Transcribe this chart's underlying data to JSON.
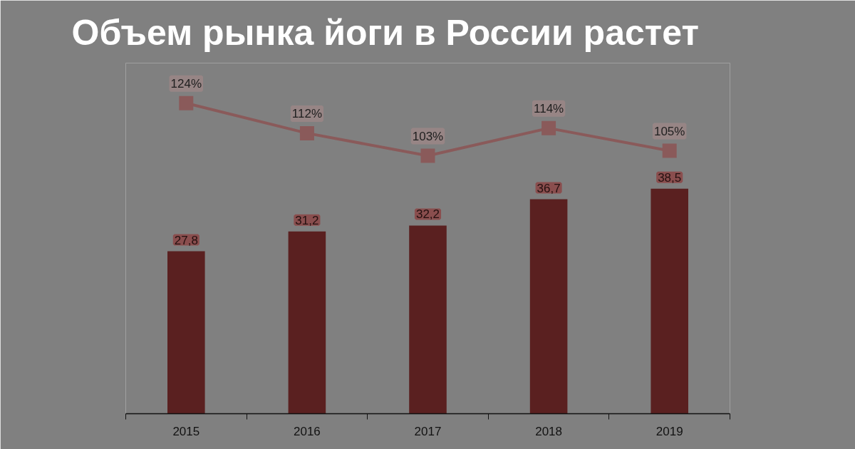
{
  "chart_data": {
    "type": "bar",
    "title": "Объем рынка йоги в России растет",
    "categories": [
      "2015",
      "2016",
      "2017",
      "2018",
      "2019"
    ],
    "series": [
      {
        "color": "#5a2020",
        "values": [
          27.8,
          31.2,
          32.2,
          36.7,
          38.5
        ],
        "value_labels": [
          "27,8",
          "31,2",
          "32,2",
          "36,7",
          "38,5"
        ]
      },
      {
        "type": "line",
        "axis": "y2",
        "color": "#8a5a5a",
        "values": [
          124,
          112,
          103,
          114,
          105
        ],
        "value_labels": [
          "124%",
          "112%",
          "103%",
          "114%",
          "105%"
        ]
      }
    ],
    "ylim": [
      0,
      60
    ],
    "y2lim": [
      0,
      140
    ],
    "tick_labels": "x",
    "grid": false,
    "marker": "square",
    "line_style": "solid"
  }
}
